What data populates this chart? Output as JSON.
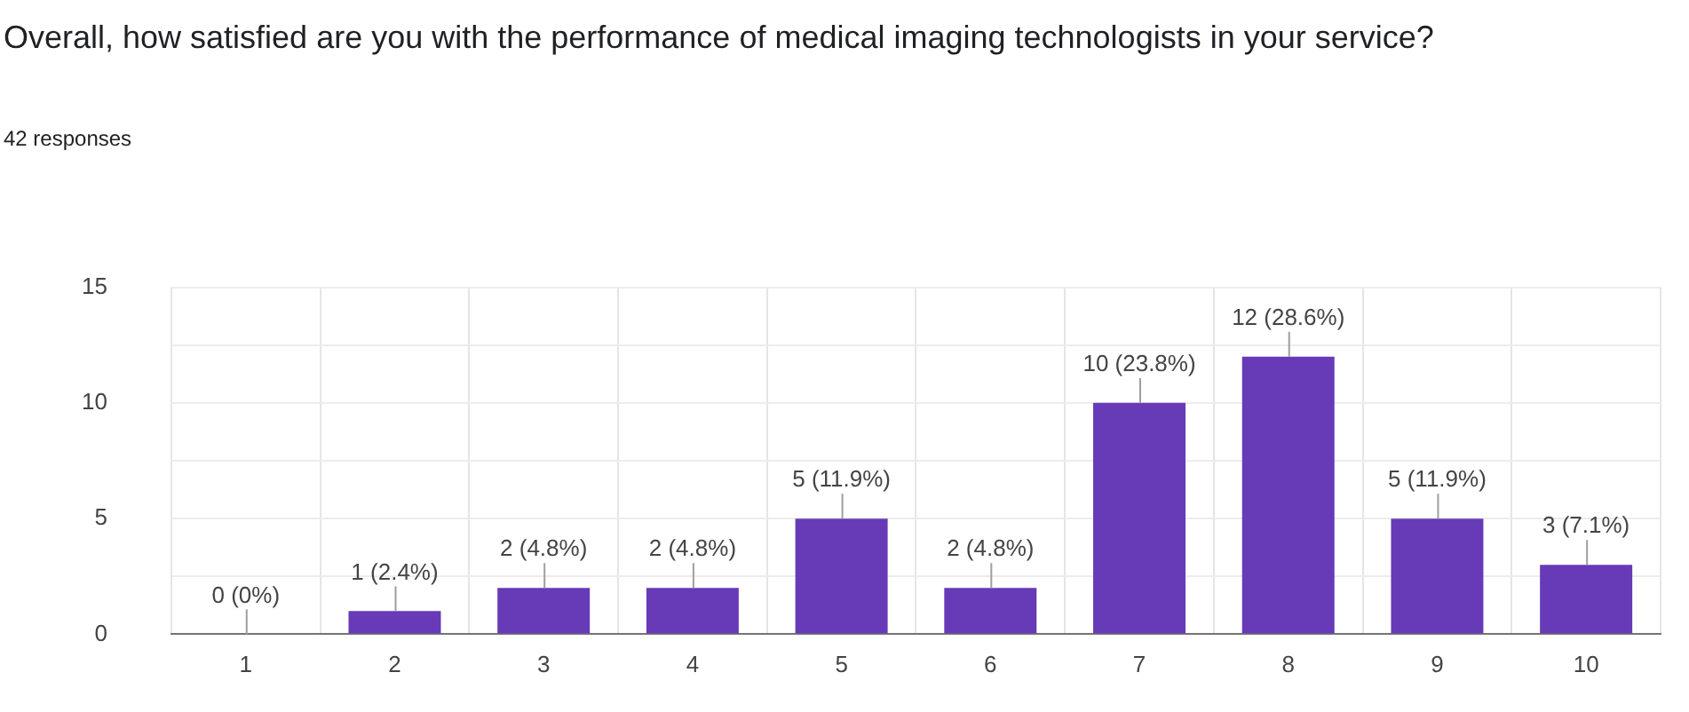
{
  "chart_data": {
    "type": "bar",
    "title": "Overall, how satisfied are you with the performance of medical imaging technologists in your service?",
    "subtitle": "42 responses",
    "categories": [
      "1",
      "2",
      "3",
      "4",
      "5",
      "6",
      "7",
      "8",
      "9",
      "10"
    ],
    "values": [
      0,
      1,
      2,
      2,
      5,
      2,
      10,
      12,
      5,
      3
    ],
    "color": "#673ab7",
    "value_labels": [
      "0 (0%)",
      "1 (2.4%)",
      "2 (4.8%)",
      "2 (4.8%)",
      "5 (11.9%)",
      "2 (4.8%)",
      "10 (23.8%)",
      "12 (28.6%)",
      "5 (11.9%)",
      "3 (7.1%)"
    ],
    "ylim": [
      0,
      15
    ],
    "yticks": [
      0,
      {
        "value": 2.5,
        "label": null
      },
      5,
      {
        "value": 7.5,
        "label": null
      },
      10,
      {
        "value": 12.5,
        "label": null
      },
      15
    ],
    "grid": true,
    "legend": false
  }
}
